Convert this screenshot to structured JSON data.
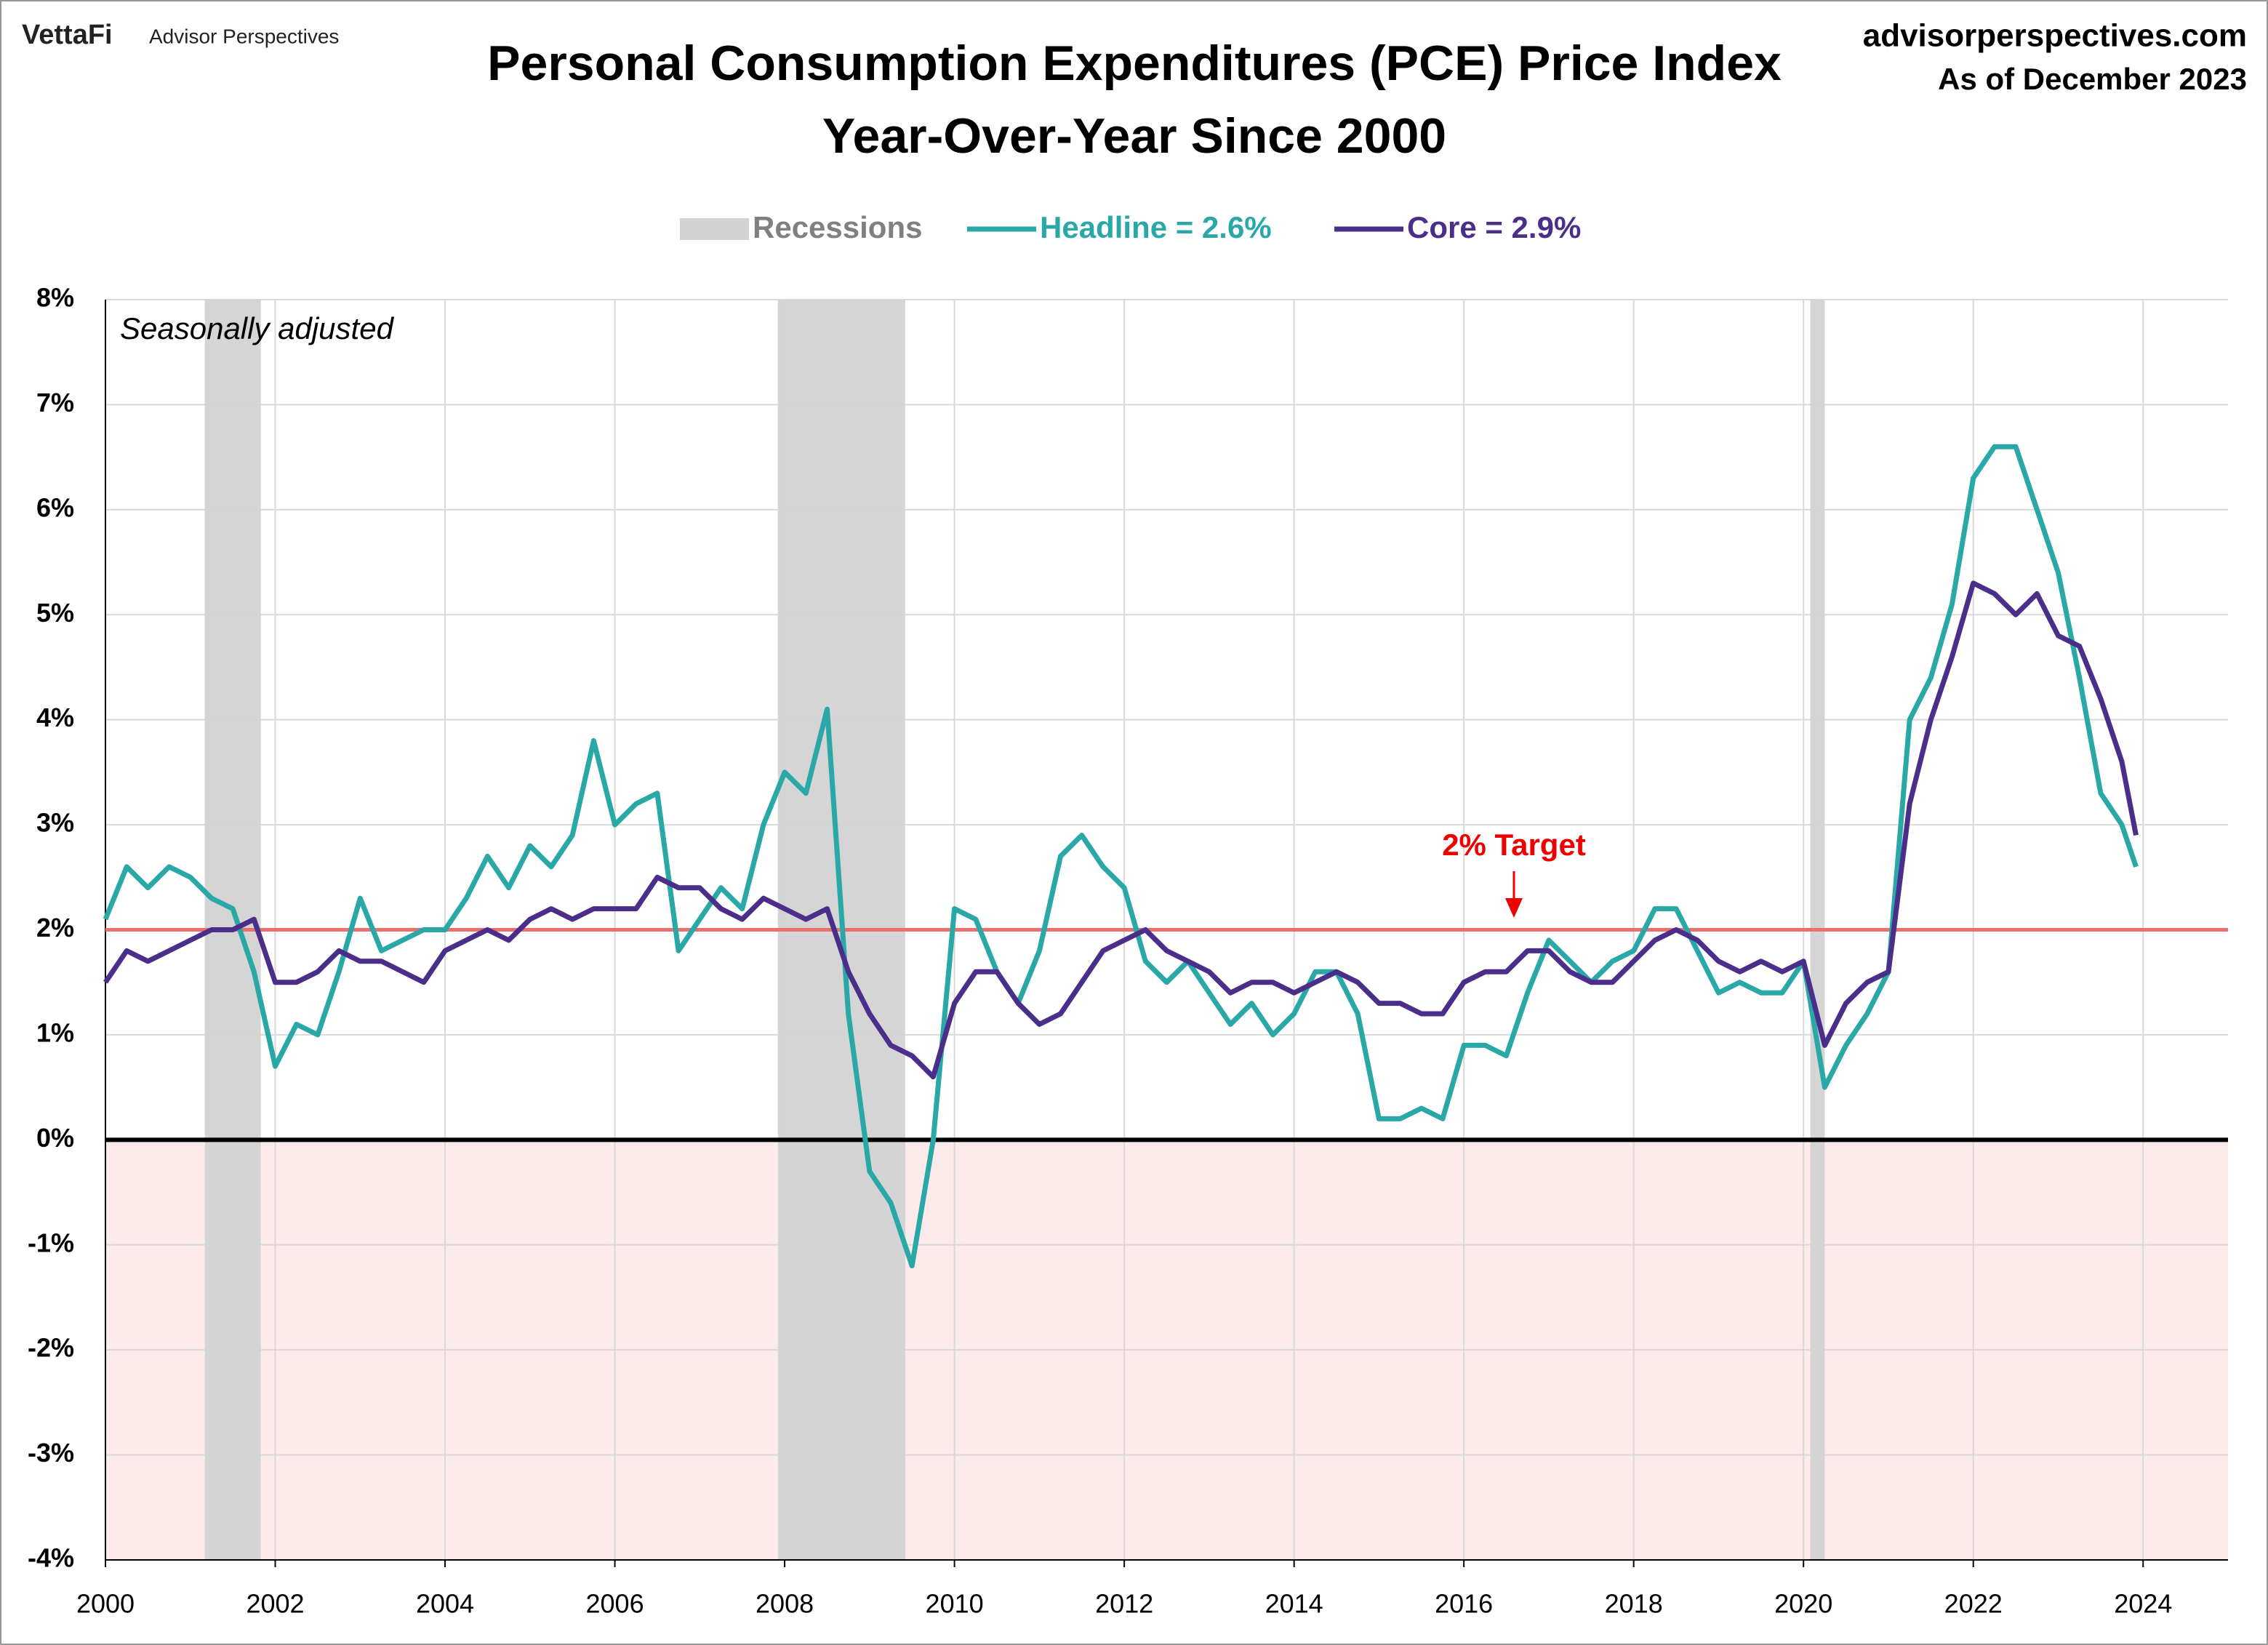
{
  "header": {
    "brand": "VettaFi",
    "brand_sub": "Advisor Perspectives",
    "site": "advisorperspectives.com",
    "as_of": "As of December 2023"
  },
  "chart_data": {
    "type": "line",
    "title": "Personal Consumption Expenditures (PCE) Price Index",
    "subtitle": "Year-Over-Year Since 2000",
    "annotation": "Seasonally adjusted",
    "recession_label": "Recessions",
    "recession_color": "#d3d3d3",
    "recessions": [
      [
        2001.17,
        2001.83
      ],
      [
        2007.92,
        2009.42
      ],
      [
        2020.08,
        2020.25
      ]
    ],
    "target": {
      "value": 2,
      "label": "2% Target",
      "color": "#e8706f"
    },
    "negative_shade": "#fdeaea",
    "grid": true,
    "x": [
      2000,
      2000.25,
      2000.5,
      2000.75,
      2001,
      2001.25,
      2001.5,
      2001.75,
      2002,
      2002.25,
      2002.5,
      2002.75,
      2003,
      2003.25,
      2003.5,
      2003.75,
      2004,
      2004.25,
      2004.5,
      2004.75,
      2005,
      2005.25,
      2005.5,
      2005.75,
      2006,
      2006.25,
      2006.5,
      2006.75,
      2007,
      2007.25,
      2007.5,
      2007.75,
      2008,
      2008.25,
      2008.5,
      2008.75,
      2009,
      2009.25,
      2009.5,
      2009.75,
      2010,
      2010.25,
      2010.5,
      2010.75,
      2011,
      2011.25,
      2011.5,
      2011.75,
      2012,
      2012.25,
      2012.5,
      2012.75,
      2013,
      2013.25,
      2013.5,
      2013.75,
      2014,
      2014.25,
      2014.5,
      2014.75,
      2015,
      2015.25,
      2015.5,
      2015.75,
      2016,
      2016.25,
      2016.5,
      2016.75,
      2017,
      2017.25,
      2017.5,
      2017.75,
      2018,
      2018.25,
      2018.5,
      2018.75,
      2019,
      2019.25,
      2019.5,
      2019.75,
      2020,
      2020.25,
      2020.5,
      2020.75,
      2021,
      2021.25,
      2021.5,
      2021.75,
      2022,
      2022.25,
      2022.5,
      2022.75,
      2023,
      2023.25,
      2023.5,
      2023.75,
      2023.917
    ],
    "series": [
      {
        "name": "Headline = 2.6%",
        "color": "#2aa8a8",
        "values": [
          2.1,
          2.6,
          2.4,
          2.6,
          2.5,
          2.3,
          2.2,
          1.6,
          0.7,
          1.1,
          1.0,
          1.6,
          2.3,
          1.8,
          1.9,
          2.0,
          2.0,
          2.3,
          2.7,
          2.4,
          2.8,
          2.6,
          2.9,
          3.8,
          3.0,
          3.2,
          3.3,
          1.8,
          2.1,
          2.4,
          2.2,
          3.0,
          3.5,
          3.3,
          4.1,
          1.2,
          -0.3,
          -0.6,
          -1.2,
          0.0,
          2.2,
          2.1,
          1.6,
          1.3,
          1.8,
          2.7,
          2.9,
          2.6,
          2.4,
          1.7,
          1.5,
          1.7,
          1.4,
          1.1,
          1.3,
          1.0,
          1.2,
          1.6,
          1.6,
          1.2,
          0.2,
          0.2,
          0.3,
          0.2,
          0.9,
          0.9,
          0.8,
          1.4,
          1.9,
          1.7,
          1.5,
          1.7,
          1.8,
          2.2,
          2.2,
          1.8,
          1.4,
          1.5,
          1.4,
          1.4,
          1.7,
          0.5,
          0.9,
          1.2,
          1.6,
          4.0,
          4.4,
          5.1,
          6.3,
          6.6,
          6.6,
          6.0,
          5.4,
          4.4,
          3.3,
          3.0,
          2.6
        ]
      },
      {
        "name": "Core = 2.9%",
        "color": "#4b2e8a",
        "values": [
          1.5,
          1.8,
          1.7,
          1.8,
          1.9,
          2.0,
          2.0,
          2.1,
          1.5,
          1.5,
          1.6,
          1.8,
          1.7,
          1.7,
          1.6,
          1.5,
          1.8,
          1.9,
          2.0,
          1.9,
          2.1,
          2.2,
          2.1,
          2.2,
          2.2,
          2.2,
          2.5,
          2.4,
          2.4,
          2.2,
          2.1,
          2.3,
          2.2,
          2.1,
          2.2,
          1.6,
          1.2,
          0.9,
          0.8,
          0.6,
          1.3,
          1.6,
          1.6,
          1.3,
          1.1,
          1.2,
          1.5,
          1.8,
          1.9,
          2.0,
          1.8,
          1.7,
          1.6,
          1.4,
          1.5,
          1.5,
          1.4,
          1.5,
          1.6,
          1.5,
          1.3,
          1.3,
          1.2,
          1.2,
          1.5,
          1.6,
          1.6,
          1.8,
          1.8,
          1.6,
          1.5,
          1.5,
          1.7,
          1.9,
          2.0,
          1.9,
          1.7,
          1.6,
          1.7,
          1.6,
          1.7,
          0.9,
          1.3,
          1.5,
          1.6,
          3.2,
          4.0,
          4.6,
          5.3,
          5.2,
          5.0,
          5.2,
          4.8,
          4.7,
          4.2,
          3.6,
          2.9
        ]
      }
    ],
    "xlim": [
      2000,
      2025
    ],
    "xticks": [
      2000,
      2002,
      2004,
      2006,
      2008,
      2010,
      2012,
      2014,
      2016,
      2018,
      2020,
      2022,
      2024
    ],
    "ylim": [
      -4,
      8
    ],
    "yticks": [
      {
        "value": -4,
        "label": "-4%"
      },
      {
        "value": -3,
        "label": "-3%"
      },
      {
        "value": -2,
        "label": "-2%"
      },
      {
        "value": -1,
        "label": "-1%"
      },
      {
        "value": 0,
        "label": "0%"
      },
      {
        "value": 1,
        "label": "1%"
      },
      {
        "value": 2,
        "label": "2%"
      },
      {
        "value": 3,
        "label": "3%"
      },
      {
        "value": 4,
        "label": "4%"
      },
      {
        "value": 5,
        "label": "5%"
      },
      {
        "value": 6,
        "label": "6%"
      },
      {
        "value": 7,
        "label": "7%"
      },
      {
        "value": 8,
        "label": "8%"
      }
    ]
  }
}
